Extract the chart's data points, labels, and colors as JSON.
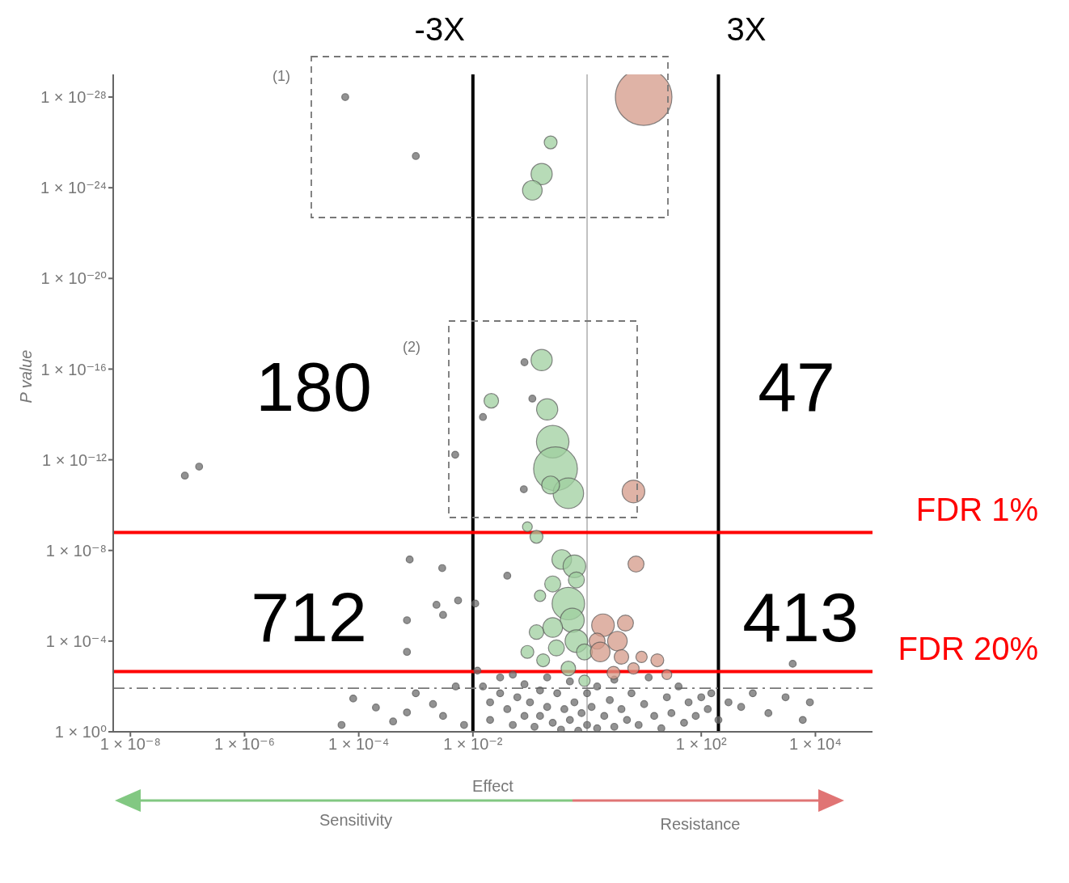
{
  "chart_data": {
    "type": "bubble",
    "xlabel": "Effect",
    "ylabel": "P value",
    "log": "xy",
    "marker": "circle",
    "xlim": [
      5e-09,
      100000
    ],
    "ylim": [
      1,
      1e-29
    ],
    "xticks": [
      {
        "value": 1e-08,
        "label": "1 × 10⁻⁸"
      },
      {
        "value": 1e-06,
        "label": "1 × 10⁻⁶"
      },
      {
        "value": 0.0001,
        "label": "1 × 10⁻⁴"
      },
      {
        "value": 0.01,
        "label": "1 × 10⁻²"
      },
      {
        "value": 100,
        "label": "1 × 10²"
      },
      {
        "value": 10000,
        "label": "1 × 10⁴"
      }
    ],
    "yticks": [
      {
        "value": 1,
        "label": "1 × 10⁰"
      },
      {
        "value": 0.0001,
        "label": "1 × 10⁻⁴"
      },
      {
        "value": 1e-08,
        "label": "1 × 10⁻⁸"
      },
      {
        "value": 1e-12,
        "label": "1 × 10⁻¹²"
      },
      {
        "value": 1e-16,
        "label": "1 × 10⁻¹⁶"
      },
      {
        "value": 1e-20,
        "label": "1 × 10⁻²⁰"
      },
      {
        "value": 1e-24,
        "label": "1 × 10⁻²⁴"
      },
      {
        "value": 1e-28,
        "label": "1 × 10⁻²⁸"
      }
    ],
    "series": [
      {
        "color": "#6e6e6e",
        "x": [
          5.8e-05,
          0.001,
          9e-08,
          1.6e-07,
          0.0049,
          0.08,
          0.11,
          0.015,
          0.078,
          0.00078,
          0.0029,
          0.0023,
          0.003,
          0.0007,
          0.0007,
          0.0055,
          0.04,
          0.011,
          4000,
          0.012,
          0.015,
          0.02,
          0.02,
          0.03,
          0.03,
          0.04,
          0.05,
          0.05,
          0.06,
          0.08,
          0.08,
          0.1,
          0.12,
          0.15,
          0.15,
          0.2,
          0.2,
          0.25,
          0.3,
          0.35,
          0.4,
          0.5,
          0.5,
          0.6,
          0.7,
          0.8,
          1,
          1,
          1.2,
          1.5,
          1.5,
          2,
          2.5,
          3,
          3,
          4,
          5,
          6,
          8,
          10,
          12,
          15,
          20,
          25,
          30,
          40,
          50,
          60,
          80,
          100,
          130,
          150,
          200,
          300,
          8e-05,
          0.0002,
          0.0004,
          0.0007,
          0.001,
          0.002,
          0.003,
          0.005,
          0.007,
          5e-05,
          500,
          800,
          1500,
          3000,
          8000,
          6000
        ],
        "values": [
          1e-28,
          4e-26,
          5e-12,
          2e-12,
          6e-13,
          5e-17,
          2e-15,
          1.3e-14,
          2e-11,
          2.5e-08,
          6e-08,
          2.5e-06,
          7e-06,
          1.2e-05,
          0.0003,
          1.6e-06,
          1.3e-07,
          2.2e-06,
          0.001,
          0.002,
          0.01,
          0.05,
          0.3,
          0.004,
          0.02,
          0.1,
          0.5,
          0.003,
          0.03,
          0.008,
          0.2,
          0.05,
          0.6,
          0.015,
          0.2,
          0.004,
          0.08,
          0.4,
          0.02,
          0.8,
          0.1,
          0.006,
          0.3,
          0.05,
          0.9,
          0.15,
          0.02,
          0.5,
          0.08,
          0.7,
          0.01,
          0.2,
          0.04,
          0.6,
          0.005,
          0.1,
          0.3,
          0.02,
          0.5,
          0.06,
          0.004,
          0.2,
          0.7,
          0.03,
          0.15,
          0.01,
          0.4,
          0.05,
          0.2,
          0.03,
          0.1,
          0.02,
          0.3,
          0.05,
          0.034,
          0.085,
          0.35,
          0.14,
          0.02,
          0.06,
          0.2,
          0.01,
          0.5,
          0.5,
          0.08,
          0.02,
          0.15,
          0.03,
          0.05,
          0.3
        ],
        "sizes": [
          0.015,
          0.015,
          0.015,
          0.015,
          0.015,
          0.015,
          0.015,
          0.015,
          0.015,
          0.015,
          0.015,
          0.015,
          0.015,
          0.015,
          0.015,
          0.015,
          0.015,
          0.015,
          0.015,
          0.015,
          0.015,
          0.015,
          0.015,
          0.015,
          0.015,
          0.015,
          0.015,
          0.015,
          0.015,
          0.015,
          0.015,
          0.015,
          0.015,
          0.015,
          0.015,
          0.015,
          0.015,
          0.015,
          0.015,
          0.015,
          0.015,
          0.015,
          0.015,
          0.015,
          0.015,
          0.015,
          0.015,
          0.015,
          0.015,
          0.015,
          0.015,
          0.015,
          0.015,
          0.015,
          0.015,
          0.015,
          0.015,
          0.015,
          0.015,
          0.015,
          0.015,
          0.015,
          0.015,
          0.015,
          0.015,
          0.015,
          0.015,
          0.015,
          0.015,
          0.015,
          0.015,
          0.015,
          0.015,
          0.015,
          0.015,
          0.015,
          0.015,
          0.015,
          0.015,
          0.015,
          0.015,
          0.015,
          0.015,
          0.015,
          0.015,
          0.015,
          0.015,
          0.015,
          0.015,
          0.015
        ]
      },
      {
        "color": "#9fcf9f",
        "x": [
          0.23,
          0.16,
          0.11,
          0.16,
          0.021,
          0.2,
          0.25,
          0.28,
          0.47,
          0.23,
          0.09,
          0.13,
          0.36,
          0.6,
          0.65,
          0.25,
          0.15,
          0.47,
          0.55,
          0.25,
          0.13,
          0.65,
          0.29,
          0.09,
          0.9,
          0.17,
          0.47,
          0.9
        ],
        "values": [
          1e-26,
          2.5e-25,
          1.3e-24,
          4e-17,
          2.5e-15,
          6e-15,
          1.6e-13,
          2.5e-12,
          3e-11,
          1.3e-11,
          9e-10,
          2.5e-09,
          2.5e-08,
          5e-08,
          2e-07,
          3e-07,
          1e-06,
          2.2e-06,
          1.2e-05,
          2.5e-05,
          4e-05,
          0.0001,
          0.0002,
          0.0003,
          0.0003,
          0.0007,
          0.0016,
          0.0056
        ],
        "sizes": [
          0.052,
          0.14,
          0.12,
          0.14,
          0.066,
          0.14,
          0.33,
          0.6,
          0.29,
          0.1,
          0.03,
          0.052,
          0.12,
          0.16,
          0.08,
          0.08,
          0.04,
          0.33,
          0.18,
          0.12,
          0.066,
          0.16,
          0.08,
          0.052,
          0.08,
          0.052,
          0.066,
          0.04
        ]
      },
      {
        "color": "#d49a88",
        "x": [
          9.8,
          6.5,
          7.2,
          1.9,
          4.7,
          3.4,
          1.5,
          1.7,
          4,
          9,
          17,
          6.5,
          2.9,
          25
        ],
        "values": [
          1e-28,
          2.5e-11,
          4e-08,
          2e-05,
          1.6e-05,
          0.0001,
          0.0001,
          0.0003,
          0.0005,
          0.0005,
          0.0007,
          0.0016,
          0.0025,
          0.003
        ],
        "sizes": [
          1,
          0.16,
          0.08,
          0.16,
          0.08,
          0.12,
          0.08,
          0.12,
          0.066,
          0.04,
          0.052,
          0.04,
          0.052,
          0.03
        ]
      }
    ],
    "ref_lines": [
      {
        "axis": "x",
        "value": 0.01,
        "label": "-3X",
        "color": "#000000"
      },
      {
        "axis": "x",
        "value": 200,
        "label": "3X",
        "color": "#000000"
      },
      {
        "axis": "x",
        "value": 1,
        "color": "#bbbbbb"
      },
      {
        "axis": "y",
        "value": 1.6e-09,
        "label": "FDR 1%",
        "color": "#ff0000"
      },
      {
        "axis": "y",
        "value": 0.0022,
        "label": "FDR 20%",
        "color": "#ff0000"
      },
      {
        "axis": "y",
        "value": 0.012,
        "color": "#777777",
        "line_style": "dashed"
      }
    ],
    "annotations": [
      "(1)",
      "(2)",
      "Sensitivity",
      "Resistance",
      "180",
      "47",
      "712",
      "413"
    ]
  }
}
